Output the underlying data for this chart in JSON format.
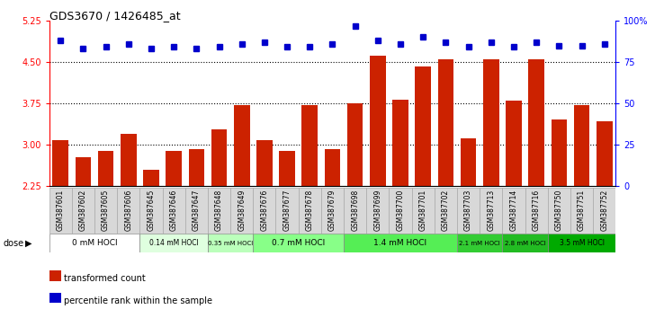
{
  "title": "GDS3670 / 1426485_at",
  "samples": [
    "GSM387601",
    "GSM387602",
    "GSM387605",
    "GSM387606",
    "GSM387645",
    "GSM387646",
    "GSM387647",
    "GSM387648",
    "GSM387649",
    "GSM387676",
    "GSM387677",
    "GSM387678",
    "GSM387679",
    "GSM387698",
    "GSM387699",
    "GSM387700",
    "GSM387701",
    "GSM387702",
    "GSM387703",
    "GSM387713",
    "GSM387714",
    "GSM387716",
    "GSM387750",
    "GSM387751",
    "GSM387752"
  ],
  "bar_values": [
    3.08,
    2.78,
    2.88,
    3.2,
    2.55,
    2.88,
    2.92,
    3.28,
    3.72,
    3.08,
    2.88,
    3.72,
    2.92,
    3.75,
    4.62,
    3.82,
    4.42,
    4.55,
    3.12,
    4.55,
    3.8,
    4.55,
    3.45,
    3.72,
    3.42
  ],
  "percentile_values": [
    88,
    83,
    84,
    86,
    83,
    84,
    83,
    84,
    86,
    87,
    84,
    84,
    86,
    97,
    88,
    86,
    90,
    87,
    84,
    87,
    84,
    87,
    85,
    85,
    86
  ],
  "groups": [
    {
      "label": "0 mM HOCl",
      "start": 0,
      "end": 4,
      "color": "#ffffff"
    },
    {
      "label": "0.14 mM HOCl",
      "start": 4,
      "end": 7,
      "color": "#dfffdf"
    },
    {
      "label": "0.35 mM HOCl",
      "start": 7,
      "end": 9,
      "color": "#bbffbb"
    },
    {
      "label": "0.7 mM HOCl",
      "start": 9,
      "end": 13,
      "color": "#88ff88"
    },
    {
      "label": "1.4 mM HOCl",
      "start": 13,
      "end": 18,
      "color": "#55ee55"
    },
    {
      "label": "2.1 mM HOCl",
      "start": 18,
      "end": 20,
      "color": "#33cc33"
    },
    {
      "label": "2.8 mM HOCl",
      "start": 20,
      "end": 22,
      "color": "#22bb22"
    },
    {
      "label": "3.5 mM HOCl",
      "start": 22,
      "end": 25,
      "color": "#00aa00"
    }
  ],
  "ylim_left": [
    2.25,
    5.25
  ],
  "ylim_right": [
    0,
    100
  ],
  "yticks_left": [
    2.25,
    3.0,
    3.75,
    4.5,
    5.25
  ],
  "yticks_right": [
    0,
    25,
    50,
    75,
    100
  ],
  "ytick_labels_right": [
    "0",
    "25",
    "50",
    "75",
    "100%"
  ],
  "bar_color": "#cc2200",
  "dot_color": "#0000cc",
  "bar_bottom": 2.25,
  "grid_lines": [
    3.0,
    3.75,
    4.5
  ],
  "sample_cell_color": "#d8d8d8",
  "sample_cell_edge": "#aaaaaa"
}
